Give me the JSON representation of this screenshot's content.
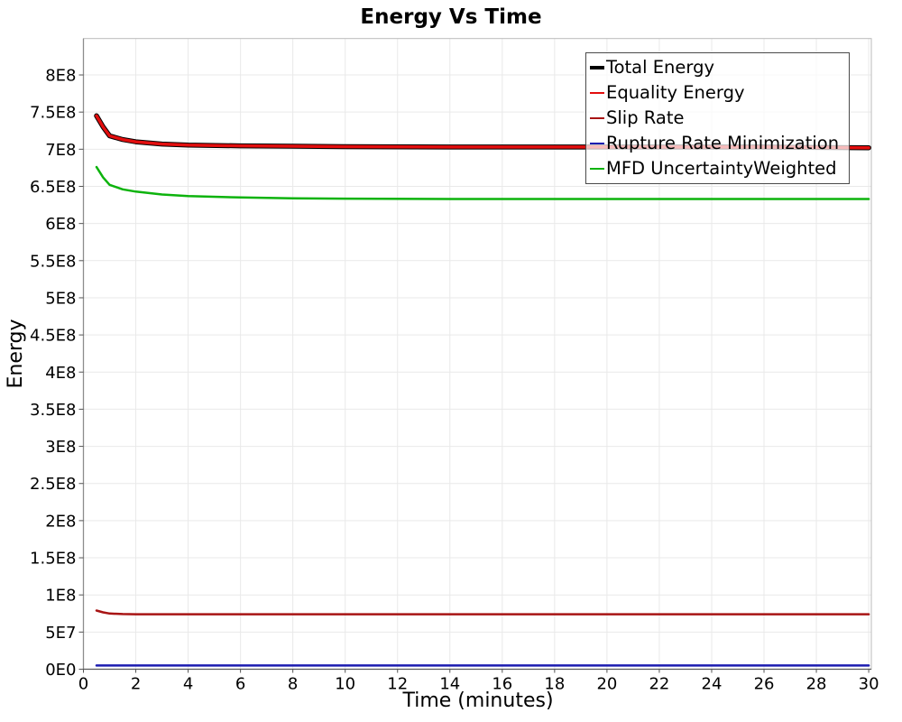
{
  "chart_data": {
    "type": "line",
    "title": "Energy Vs Time",
    "xlabel": "Time (minutes)",
    "ylabel": "Energy",
    "xlim": [
      0,
      30
    ],
    "ylim": [
      0,
      800000000
    ],
    "grid": true,
    "legend_position": "top-right",
    "x_ticks": [
      0,
      2,
      4,
      6,
      8,
      10,
      12,
      14,
      16,
      18,
      20,
      22,
      24,
      26,
      28,
      30
    ],
    "y_ticks": [
      {
        "value": 0,
        "label": "0E0"
      },
      {
        "value": 50000000,
        "label": "5E7"
      },
      {
        "value": 100000000,
        "label": "1E8"
      },
      {
        "value": 150000000,
        "label": "1.5E8"
      },
      {
        "value": 200000000,
        "label": "2E8"
      },
      {
        "value": 250000000,
        "label": "2.5E8"
      },
      {
        "value": 300000000,
        "label": "3E8"
      },
      {
        "value": 350000000,
        "label": "3.5E8"
      },
      {
        "value": 400000000,
        "label": "4E8"
      },
      {
        "value": 450000000,
        "label": "4.5E8"
      },
      {
        "value": 500000000,
        "label": "5E8"
      },
      {
        "value": 550000000,
        "label": "5.5E8"
      },
      {
        "value": 600000000,
        "label": "6E8"
      },
      {
        "value": 650000000,
        "label": "6.5E8"
      },
      {
        "value": 700000000,
        "label": "7E8"
      },
      {
        "value": 750000000,
        "label": "7.5E8"
      },
      {
        "value": 800000000,
        "label": "8E8"
      }
    ],
    "x": [
      0.5,
      0.75,
      1,
      1.5,
      2,
      3,
      4,
      6,
      8,
      10,
      14,
      18,
      22,
      26,
      30
    ],
    "series": [
      {
        "name": "Total Energy",
        "color": "#000000",
        "line_width": 5.5,
        "values": [
          745000000,
          730000000,
          718000000,
          713000000,
          710000000,
          707000000,
          705500000,
          704500000,
          704000000,
          703500000,
          703000000,
          703000000,
          703000000,
          703000000,
          702000000
        ]
      },
      {
        "name": "Equality Energy",
        "color": "#e30e0e",
        "line_width": 3.5,
        "values": [
          745000000,
          730000000,
          718000000,
          713000000,
          710000000,
          707000000,
          705500000,
          704500000,
          704000000,
          703500000,
          703000000,
          703000000,
          703000000,
          703000000,
          702000000
        ]
      },
      {
        "name": "Slip Rate",
        "color": "#a81414",
        "line_width": 2.5,
        "values": [
          79000000,
          76500000,
          75000000,
          74200000,
          74000000,
          74000000,
          74000000,
          74000000,
          74000000,
          74000000,
          74000000,
          74000000,
          74000000,
          74000000,
          74000000
        ]
      },
      {
        "name": "Rupture Rate Minimization",
        "color": "#1c1cb0",
        "line_width": 2.5,
        "values": [
          5000000,
          5000000,
          5000000,
          5000000,
          5000000,
          5000000,
          5000000,
          5000000,
          5000000,
          5000000,
          5000000,
          5000000,
          5000000,
          5000000,
          5000000
        ]
      },
      {
        "name": "MFD UncertaintyWeighted",
        "color": "#0db30d",
        "line_width": 2.5,
        "values": [
          676000000,
          662000000,
          652000000,
          646000000,
          643000000,
          639000000,
          637000000,
          635000000,
          634000000,
          633500000,
          633000000,
          633000000,
          633000000,
          633000000,
          633000000
        ]
      }
    ],
    "colors": {
      "grid": "#e9e9e9",
      "frame": "#bbbbbb",
      "axis": "#777777",
      "tick": "#555555"
    }
  }
}
